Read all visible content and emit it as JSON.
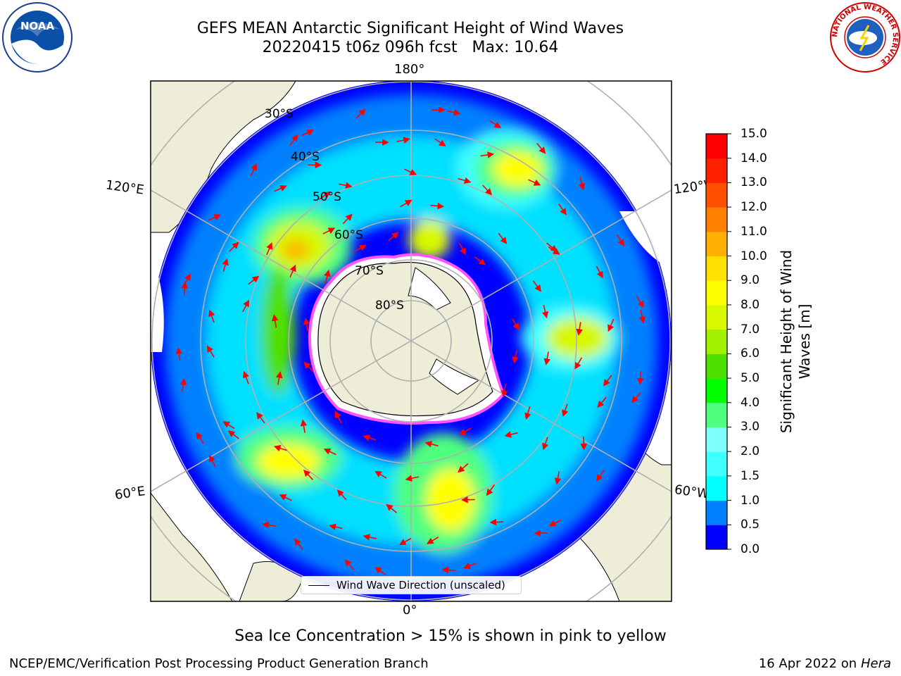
{
  "header": {
    "title_line1": "GEFS MEAN Antarctic Significant Height of Wind Waves",
    "title_line2": "20220415 t06z 096h fcst   Max: 10.64"
  },
  "logos": {
    "noaa_text": "NOAA",
    "nws_ring_text": "NATIONAL WEATHER SERVICE"
  },
  "map": {
    "lon_labels": {
      "top": "180°",
      "bottom": "0°",
      "upper_left": "120°E",
      "lower_left": "60°E",
      "upper_right": "120°W",
      "lower_right": "60°W"
    },
    "lat_labels": [
      "30°S",
      "40°S",
      "50°S",
      "60°S",
      "70°S",
      "80°S"
    ],
    "legend_label": "Wind Wave Direction (unscaled)",
    "colors": {
      "ocean_low": "#0000ff",
      "land": "#eeeed8",
      "ice_edge": "#ff55ff",
      "arrow": "#ff0000",
      "grid": "#b0b0b0"
    }
  },
  "colorbar": {
    "label_line1": "Significant Height of Wind",
    "label_line2": "Waves [m]",
    "ticks": [
      "0.0",
      "0.5",
      "1.0",
      "1.5",
      "2.0",
      "3.0",
      "4.0",
      "5.0",
      "6.0",
      "7.0",
      "8.0",
      "9.0",
      "10.0",
      "11.0",
      "12.0",
      "13.0",
      "14.0",
      "15.0"
    ],
    "colors": [
      "#0000ff",
      "#0080ff",
      "#00ffff",
      "#40ffff",
      "#80ffff",
      "#50ff80",
      "#00ff00",
      "#50e000",
      "#a0f000",
      "#d8f800",
      "#ffff00",
      "#ffe000",
      "#ffb000",
      "#ff8000",
      "#ff5000",
      "#ff2000",
      "#ff0000"
    ]
  },
  "caption": "Sea Ice Concentration > 15% is shown in pink to yellow",
  "footer": {
    "left": "NCEP/EMC/Verification Post Processing Product Generation Branch",
    "right_date": "16 Apr 2022 on ",
    "right_host": "Hera"
  }
}
